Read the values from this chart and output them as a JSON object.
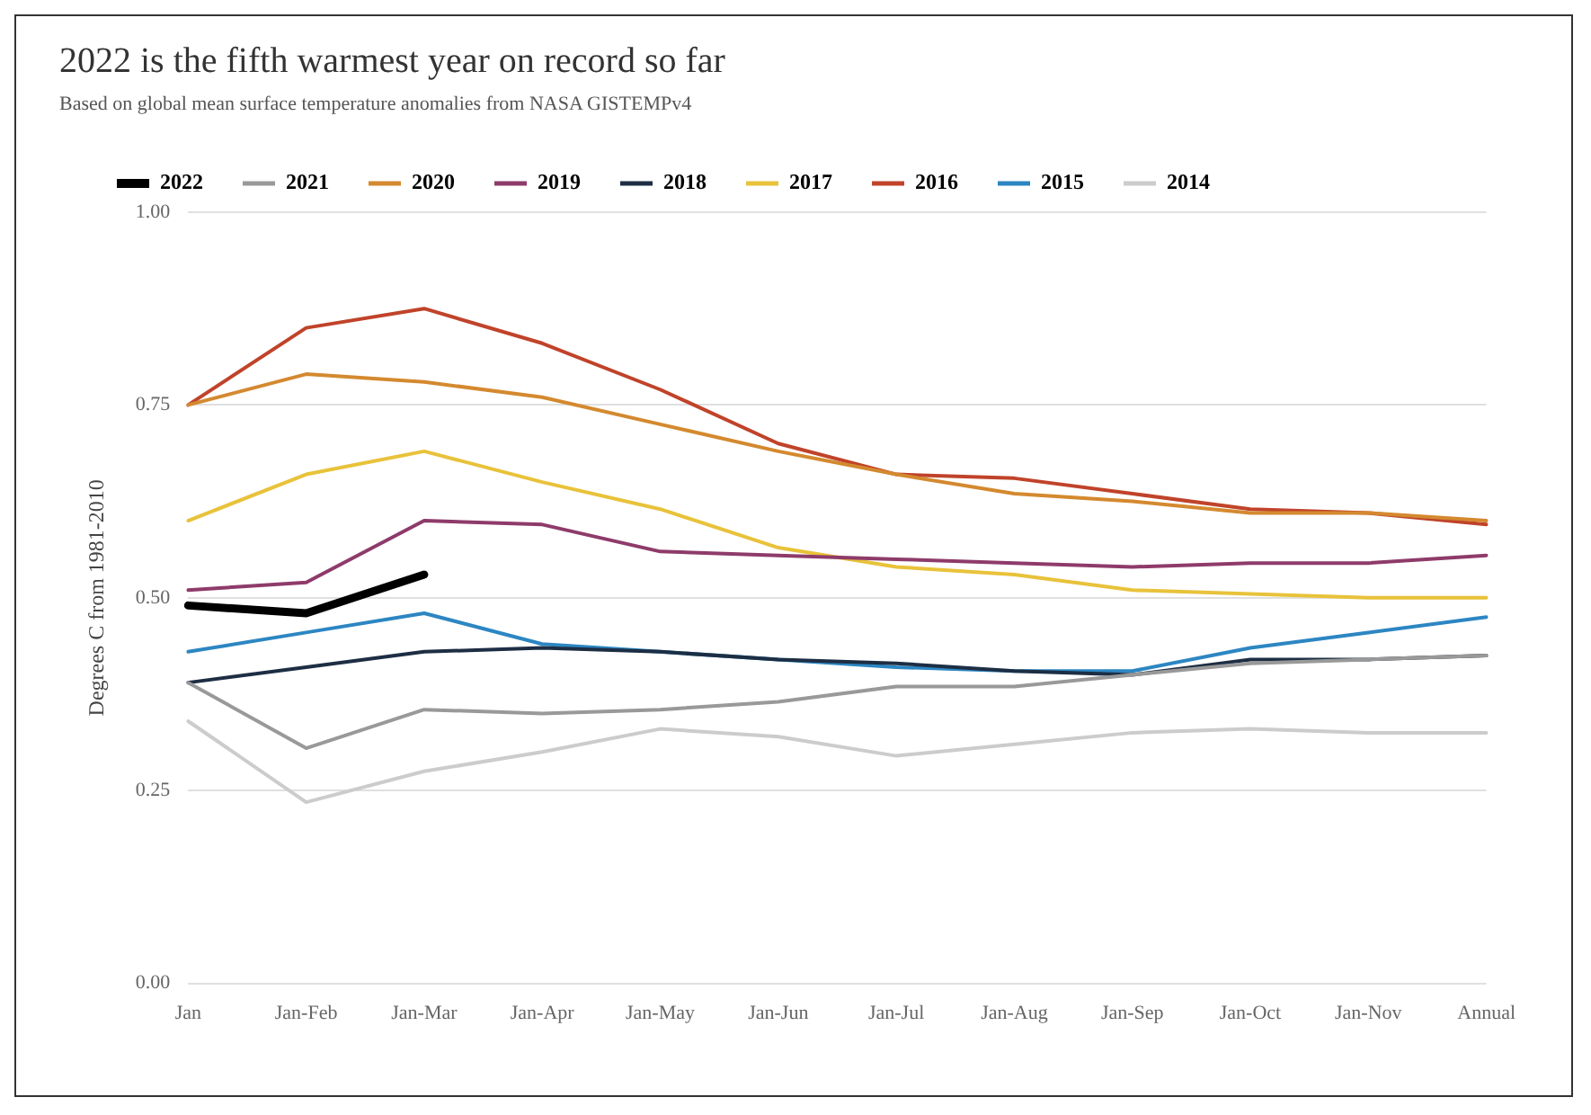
{
  "chart_data": {
    "type": "line",
    "title": "2022 is the fifth warmest year on record so far",
    "subtitle": "Based on global mean surface temperature anomalies from NASA GISTEMPv4",
    "ylabel": "Degrees C from 1981-2010",
    "categories": [
      "Jan",
      "Jan-Feb",
      "Jan-Mar",
      "Jan-Apr",
      "Jan-May",
      "Jan-Jun",
      "Jan-Jul",
      "Jan-Aug",
      "Jan-Sep",
      "Jan-Oct",
      "Jan-Nov",
      "Annual"
    ],
    "series": [
      {
        "name": "2022",
        "color": "#000000",
        "values": [
          0.49,
          0.48,
          0.53,
          null,
          null,
          null,
          null,
          null,
          null,
          null,
          null,
          null
        ]
      },
      {
        "name": "2021",
        "color": "#999999",
        "values": [
          0.39,
          0.305,
          0.355,
          0.35,
          0.355,
          0.365,
          0.385,
          0.385,
          0.4,
          0.415,
          0.42,
          0.425
        ]
      },
      {
        "name": "2020",
        "color": "#d4892f",
        "values": [
          0.75,
          0.79,
          0.78,
          0.76,
          0.725,
          0.69,
          0.66,
          0.635,
          0.625,
          0.61,
          0.61,
          0.6
        ]
      },
      {
        "name": "2019",
        "color": "#8e3b6a",
        "values": [
          0.51,
          0.52,
          0.6,
          0.595,
          0.56,
          0.555,
          0.55,
          0.545,
          0.54,
          0.545,
          0.545,
          0.555
        ]
      },
      {
        "name": "2018",
        "color": "#1d2e44",
        "values": [
          0.39,
          0.41,
          0.43,
          0.435,
          0.43,
          0.42,
          0.415,
          0.405,
          0.4,
          0.42,
          0.42,
          0.425
        ]
      },
      {
        "name": "2017",
        "color": "#e8c23a",
        "values": [
          0.6,
          0.66,
          0.69,
          0.65,
          0.615,
          0.565,
          0.54,
          0.53,
          0.51,
          0.505,
          0.5,
          0.5
        ]
      },
      {
        "name": "2016",
        "color": "#c0432a",
        "values": [
          0.75,
          0.85,
          0.875,
          0.83,
          0.77,
          0.7,
          0.66,
          0.655,
          0.635,
          0.615,
          0.61,
          0.595
        ]
      },
      {
        "name": "2015",
        "color": "#2c86c2",
        "values": [
          0.43,
          0.455,
          0.48,
          0.44,
          0.43,
          0.42,
          0.41,
          0.405,
          0.405,
          0.435,
          0.455,
          0.475
        ]
      },
      {
        "name": "2014",
        "color": "#cccccc",
        "values": [
          0.34,
          0.235,
          0.275,
          0.3,
          0.33,
          0.32,
          0.295,
          0.31,
          0.325,
          0.33,
          0.325,
          0.325
        ]
      }
    ],
    "ylim": [
      0,
      1
    ],
    "yticks": [
      {
        "value": 0,
        "label": "0.00"
      },
      {
        "value": 0.25,
        "label": "0.25"
      },
      {
        "value": 0.5,
        "label": "0.50"
      },
      {
        "value": 0.75,
        "label": "0.75"
      },
      {
        "value": 1,
        "label": "1.00"
      }
    ],
    "grid": "y",
    "legend": "top",
    "marker": "none",
    "line_style": "solid"
  }
}
